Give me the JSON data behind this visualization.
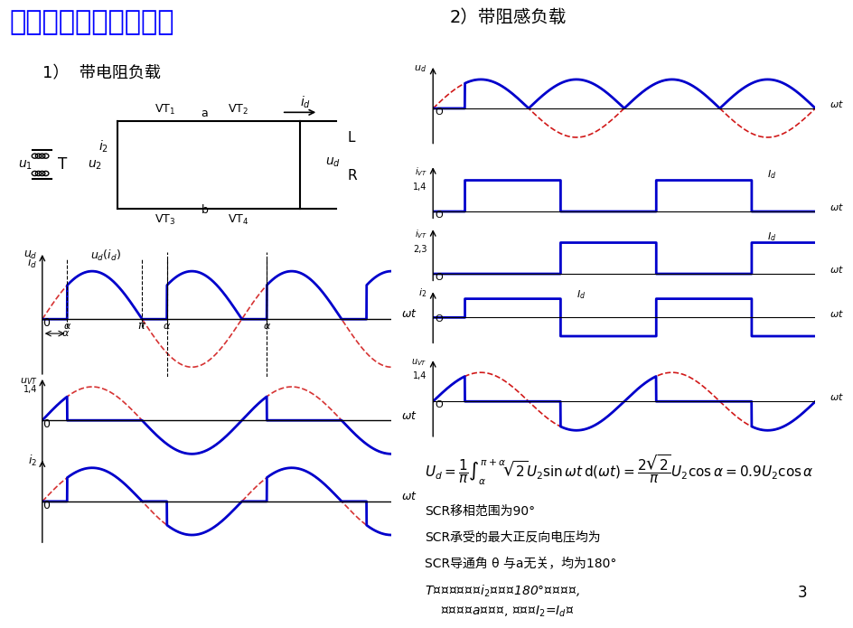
{
  "title": "单相桥式全控整流电路",
  "title_color": "#0000FF",
  "subtitle1": "1）  带电阻负载",
  "subtitle2": "2）带阻感负载",
  "bg_color": "#FFFFFF",
  "text_color": "#000000",
  "blue_color": "#0000CC",
  "red_color": "#CC0000",
  "alpha_deg": 45,
  "formula": "U_d = \\frac{1}{\\pi}\\int_{\\alpha}^{\\pi+\\alpha} \\sqrt{2}U_2 \\sin\\omega t\\,d(\\omega t) = \\frac{2\\sqrt{2}}{\\pi} U_2 \\cos\\alpha = 0.9U_2\\cos\\alpha",
  "notes": [
    "SCR移相范围为90°",
    "SCR承受的最大正反向电压均为",
    "SCR导通角 θ 与a无关，均为180°",
    "T的二次侧电流i₂正负各180°的矩形波,",
    "  其相位由a角决定, 有效值I₂=I_d。"
  ]
}
